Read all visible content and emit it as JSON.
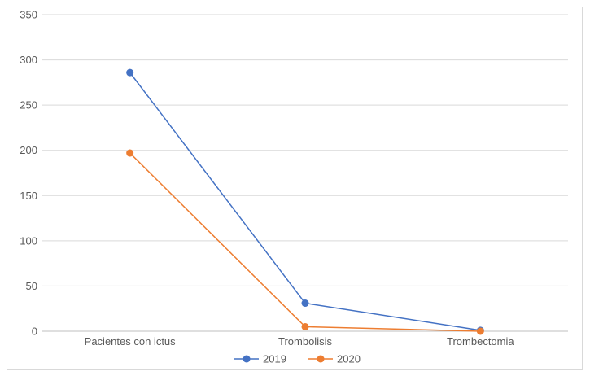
{
  "chart_data": {
    "type": "line",
    "categories": [
      "Pacientes con ictus",
      "Trombolisis",
      "Trombectomia"
    ],
    "series": [
      {
        "name": "2019",
        "values": [
          286,
          31,
          1
        ],
        "color": "#4472c4"
      },
      {
        "name": "2020",
        "values": [
          197,
          5,
          0
        ],
        "color": "#ed7d31"
      }
    ],
    "ylim": [
      0,
      350
    ],
    "yticks": [
      "0",
      "50",
      "100",
      "150",
      "200",
      "250",
      "300",
      "350"
    ],
    "grid": true,
    "legend_position": "bottom"
  }
}
